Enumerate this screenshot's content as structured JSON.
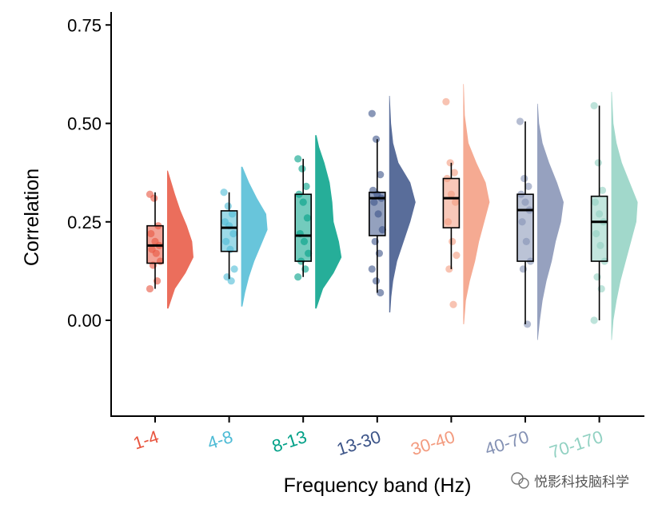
{
  "chart_data": {
    "type": "raincloud",
    "title": "",
    "xlabel": "Frequency band (Hz)",
    "ylabel": "Correlation",
    "ylim": [
      -0.25,
      0.78
    ],
    "yticks": [
      0.0,
      0.25,
      0.5,
      0.75
    ],
    "ytick_labels": [
      "0.00",
      "0.25",
      "0.50",
      "0.75"
    ],
    "grid": false,
    "categories": [
      "1-4",
      "4-8",
      "8-13",
      "13-30",
      "30-40",
      "40-70",
      "70-170"
    ],
    "colors": [
      "#E8553F",
      "#4DBBD5",
      "#00A087",
      "#3C5488",
      "#F39B7F",
      "#8491B4",
      "#91D1C2"
    ],
    "series": [
      {
        "name": "1-4",
        "box": {
          "min": 0.08,
          "q1": 0.145,
          "median": 0.19,
          "q3": 0.24,
          "max": 0.325
        },
        "points": [
          0.32,
          0.31,
          0.24,
          0.22,
          0.2,
          0.19,
          0.18,
          0.17,
          0.15,
          0.14,
          0.1,
          0.08
        ],
        "density": [
          [
            0.03,
            0.05
          ],
          [
            0.08,
            0.3
          ],
          [
            0.12,
            0.7
          ],
          [
            0.16,
            1.0
          ],
          [
            0.2,
            0.95
          ],
          [
            0.24,
            0.75
          ],
          [
            0.28,
            0.5
          ],
          [
            0.32,
            0.3
          ],
          [
            0.36,
            0.12
          ],
          [
            0.38,
            0.03
          ]
        ]
      },
      {
        "name": "4-8",
        "box": {
          "min": 0.105,
          "q1": 0.175,
          "median": 0.235,
          "q3": 0.278,
          "max": 0.325
        },
        "points": [
          0.325,
          0.29,
          0.27,
          0.25,
          0.24,
          0.22,
          0.2,
          0.18,
          0.13,
          0.11,
          0.1
        ],
        "density": [
          [
            0.035,
            0.05
          ],
          [
            0.07,
            0.15
          ],
          [
            0.11,
            0.3
          ],
          [
            0.15,
            0.5
          ],
          [
            0.19,
            0.75
          ],
          [
            0.23,
            1.0
          ],
          [
            0.27,
            0.95
          ],
          [
            0.31,
            0.6
          ],
          [
            0.35,
            0.3
          ],
          [
            0.39,
            0.05
          ]
        ]
      },
      {
        "name": "8-13",
        "box": {
          "min": 0.11,
          "q1": 0.15,
          "median": 0.215,
          "q3": 0.32,
          "max": 0.41
        },
        "points": [
          0.41,
          0.385,
          0.34,
          0.32,
          0.3,
          0.26,
          0.22,
          0.2,
          0.17,
          0.15,
          0.13,
          0.11
        ],
        "density": [
          [
            0.03,
            0.05
          ],
          [
            0.08,
            0.3
          ],
          [
            0.12,
            0.7
          ],
          [
            0.16,
            1.0
          ],
          [
            0.2,
            0.9
          ],
          [
            0.25,
            0.7
          ],
          [
            0.3,
            0.65
          ],
          [
            0.35,
            0.55
          ],
          [
            0.4,
            0.35
          ],
          [
            0.44,
            0.15
          ],
          [
            0.47,
            0.05
          ]
        ]
      },
      {
        "name": "13-30",
        "box": {
          "min": 0.07,
          "q1": 0.215,
          "median": 0.31,
          "q3": 0.325,
          "max": 0.46
        },
        "points": [
          0.525,
          0.46,
          0.37,
          0.33,
          0.32,
          0.31,
          0.3,
          0.27,
          0.23,
          0.2,
          0.17,
          0.13,
          0.1,
          0.07
        ],
        "density": [
          [
            0.02,
            0.04
          ],
          [
            0.06,
            0.08
          ],
          [
            0.1,
            0.15
          ],
          [
            0.15,
            0.3
          ],
          [
            0.2,
            0.55
          ],
          [
            0.25,
            0.8
          ],
          [
            0.3,
            1.0
          ],
          [
            0.35,
            0.8
          ],
          [
            0.4,
            0.35
          ],
          [
            0.45,
            0.15
          ],
          [
            0.5,
            0.07
          ],
          [
            0.57,
            0.02
          ]
        ]
      },
      {
        "name": "30-40",
        "box": {
          "min": 0.13,
          "q1": 0.235,
          "median": 0.31,
          "q3": 0.36,
          "max": 0.4
        },
        "points": [
          0.555,
          0.4,
          0.375,
          0.36,
          0.32,
          0.3,
          0.25,
          0.2,
          0.165,
          0.13,
          0.04
        ],
        "density": [
          [
            -0.01,
            0.03
          ],
          [
            0.05,
            0.1
          ],
          [
            0.1,
            0.25
          ],
          [
            0.15,
            0.45
          ],
          [
            0.2,
            0.6
          ],
          [
            0.25,
            0.8
          ],
          [
            0.3,
            1.0
          ],
          [
            0.35,
            0.85
          ],
          [
            0.4,
            0.5
          ],
          [
            0.45,
            0.2
          ],
          [
            0.52,
            0.06
          ],
          [
            0.6,
            0.02
          ]
        ]
      },
      {
        "name": "40-70",
        "box": {
          "min": -0.01,
          "q1": 0.15,
          "median": 0.28,
          "q3": 0.32,
          "max": 0.505
        },
        "points": [
          0.505,
          0.36,
          0.34,
          0.32,
          0.3,
          0.28,
          0.25,
          0.2,
          0.15,
          0.13,
          -0.01
        ],
        "density": [
          [
            -0.05,
            0.02
          ],
          [
            0.0,
            0.1
          ],
          [
            0.05,
            0.2
          ],
          [
            0.1,
            0.35
          ],
          [
            0.15,
            0.55
          ],
          [
            0.2,
            0.7
          ],
          [
            0.25,
            0.9
          ],
          [
            0.3,
            1.0
          ],
          [
            0.35,
            0.75
          ],
          [
            0.4,
            0.45
          ],
          [
            0.45,
            0.2
          ],
          [
            0.5,
            0.07
          ],
          [
            0.55,
            0.02
          ]
        ]
      },
      {
        "name": "70-170",
        "box": {
          "min": 0.0,
          "q1": 0.15,
          "median": 0.25,
          "q3": 0.315,
          "max": 0.545
        },
        "points": [
          0.545,
          0.4,
          0.33,
          0.3,
          0.27,
          0.25,
          0.22,
          0.19,
          0.15,
          0.11,
          0.08,
          0.0
        ],
        "density": [
          [
            -0.05,
            0.02
          ],
          [
            0.0,
            0.08
          ],
          [
            0.05,
            0.2
          ],
          [
            0.1,
            0.35
          ],
          [
            0.15,
            0.55
          ],
          [
            0.2,
            0.75
          ],
          [
            0.25,
            0.95
          ],
          [
            0.3,
            1.0
          ],
          [
            0.35,
            0.7
          ],
          [
            0.4,
            0.4
          ],
          [
            0.45,
            0.2
          ],
          [
            0.5,
            0.08
          ],
          [
            0.58,
            0.02
          ]
        ]
      }
    ]
  },
  "watermark": {
    "icon": "wechat-icon",
    "text": "悦影科技脑科学"
  }
}
